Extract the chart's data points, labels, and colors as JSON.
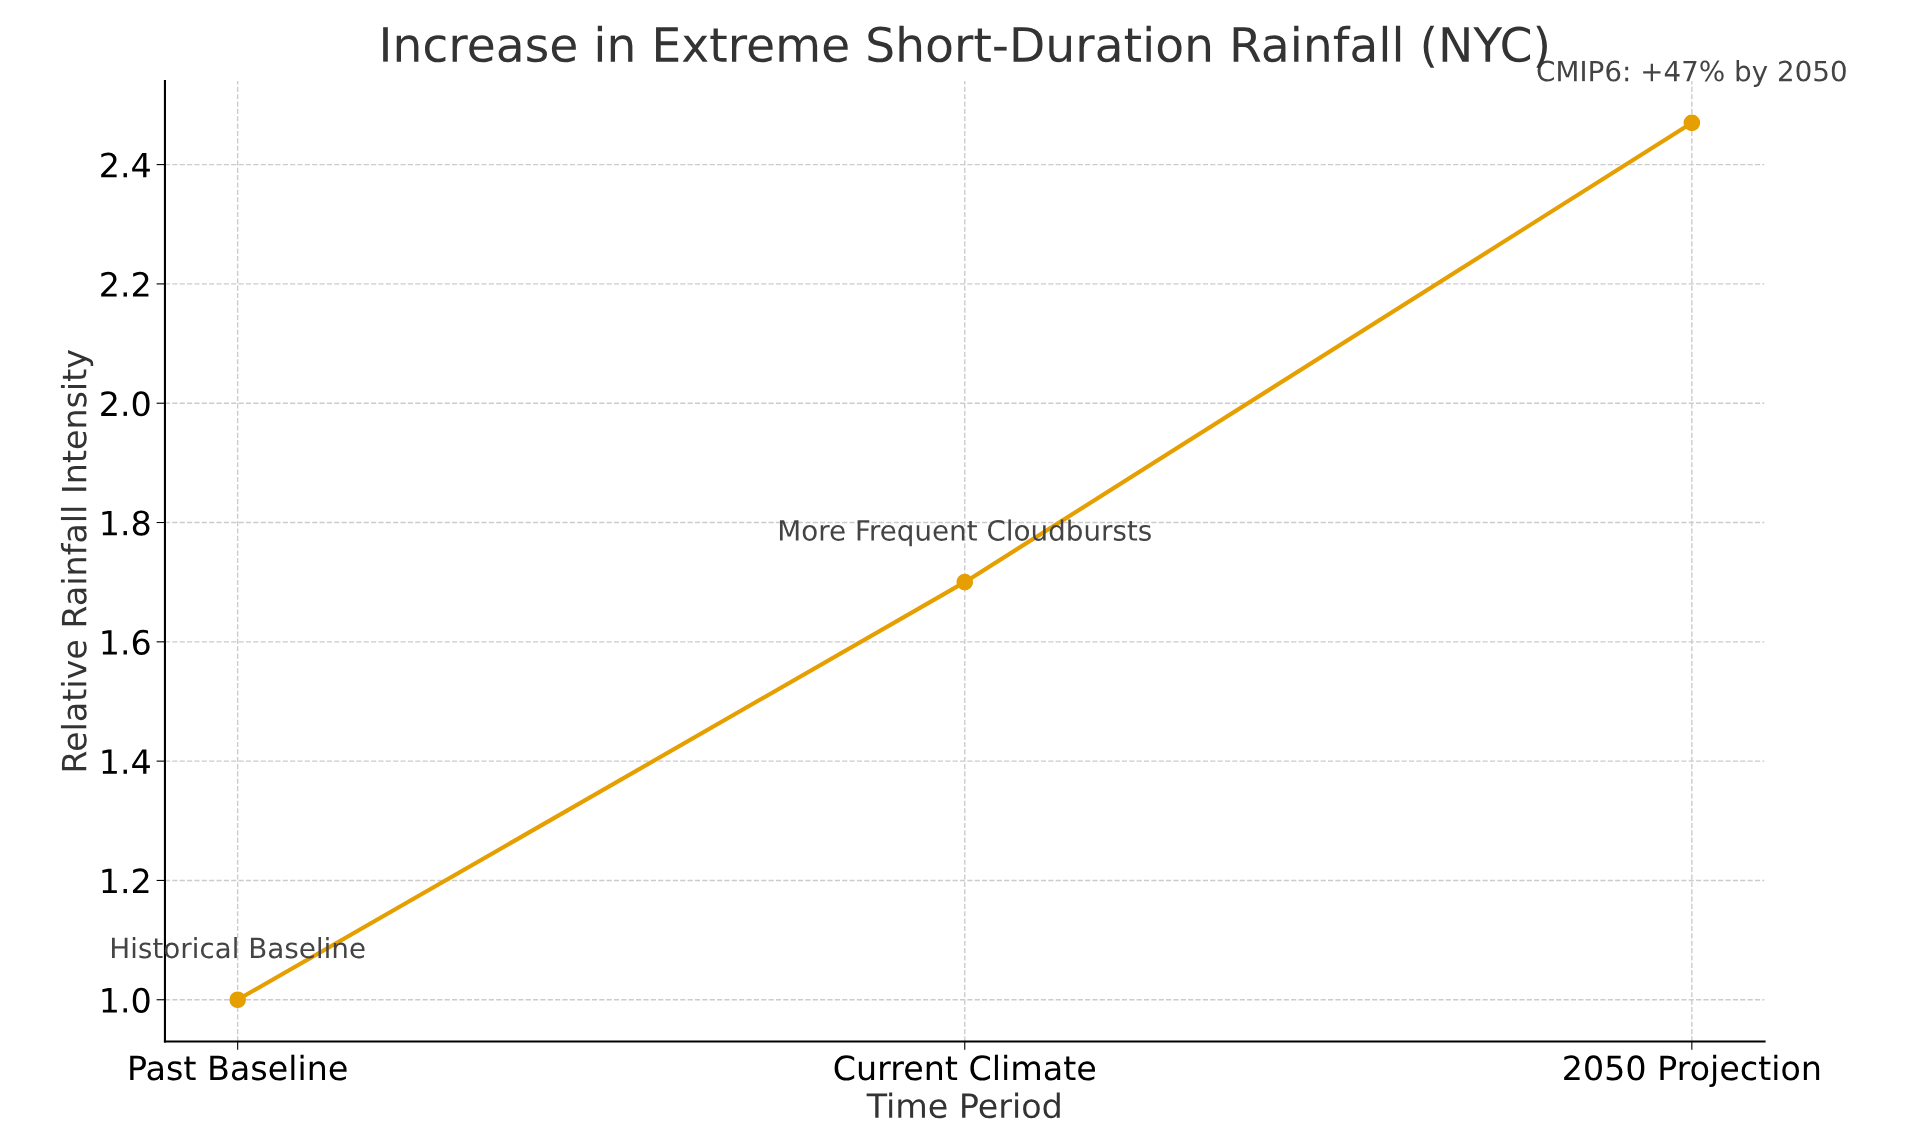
{
  "chart_data": {
    "type": "line",
    "title": "Increase in Extreme Short-Duration Rainfall (NYC)",
    "xlabel": "Time Period",
    "ylabel": "Relative Rainfall Intensity",
    "categories": [
      "Past Baseline",
      "Current Climate",
      "2050 Projection"
    ],
    "series": [
      {
        "color": "#e69f00",
        "values": [
          1.0,
          1.7,
          2.47
        ]
      }
    ],
    "ylim": [
      0.93,
      2.54
    ],
    "yticks": [
      {
        "value": 1.0,
        "label": "1.0"
      },
      {
        "value": 1.2,
        "label": "1.2"
      },
      {
        "value": 1.4,
        "label": "1.4"
      },
      {
        "value": 1.6,
        "label": "1.6"
      },
      {
        "value": 1.8,
        "label": "1.8"
      },
      {
        "value": 2.0,
        "label": "2.0"
      },
      {
        "value": 2.2,
        "label": "2.2"
      },
      {
        "value": 2.4,
        "label": "2.4"
      }
    ],
    "grid": true,
    "marker": "circle",
    "line_style": "solid",
    "legend": false,
    "annotations": [
      {
        "text": "Historical Baseline",
        "x": "Past Baseline",
        "y": 1.0
      },
      {
        "text": "More Frequent Cloudbursts",
        "x": "Current Climate",
        "y": 1.7
      },
      {
        "text": "CMIP6: +47% by 2050",
        "x": "2050 Projection",
        "y": 2.47
      }
    ]
  }
}
